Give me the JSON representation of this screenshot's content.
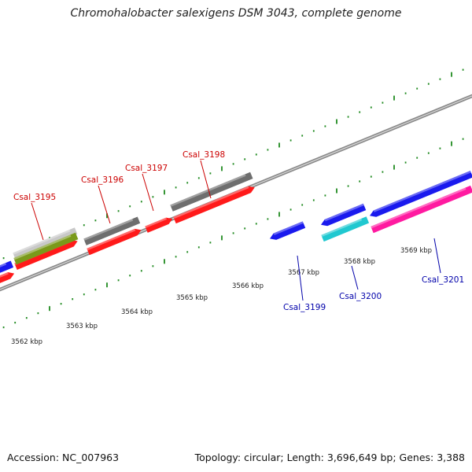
{
  "title": "Chromohalobacter salexigens DSM 3043, complete genome",
  "footer": {
    "accession": "Accession: NC_007963",
    "topology": "Topology: circular; Length: 3,696,649 bp; Genes: 3,388"
  },
  "colors": {
    "backbone": "#8a8a8a",
    "tick": "#1f8a1f",
    "red": "#ff1a1a",
    "grey": "#6e6e6e",
    "lightgrey": "#c8c8c8",
    "olive": "#7a9a1a",
    "blue": "#1a1aee",
    "cyan": "#20c8d0",
    "magenta": "#ff1aa0",
    "label_forward": "#cc0000",
    "label_reverse": "#0000aa"
  },
  "kbp_labels": [
    {
      "text": "3562 kbp",
      "pos": 3562.0
    },
    {
      "text": "3563 kbp",
      "pos": 3563.0
    },
    {
      "text": "3564 kbp",
      "pos": 3564.0
    },
    {
      "text": "3565 kbp",
      "pos": 3565.0
    },
    {
      "text": "3566 kbp",
      "pos": 3566.0
    },
    {
      "text": "3567 kbp",
      "pos": 3567.0
    },
    {
      "text": "3568 kbp",
      "pos": 3568.0
    },
    {
      "text": "3569 kbp",
      "pos": 3569.0
    }
  ],
  "gene_labels": [
    {
      "text": "Csal_3195",
      "strand": "forward"
    },
    {
      "text": "Csal_3196",
      "strand": "forward"
    },
    {
      "text": "Csal_3197",
      "strand": "forward"
    },
    {
      "text": "Csal_3198",
      "strand": "forward"
    },
    {
      "text": "Csal_3199",
      "strand": "reverse"
    },
    {
      "text": "Csal_3200",
      "strand": "reverse"
    },
    {
      "text": "Csal_3201",
      "strand": "reverse"
    }
  ]
}
